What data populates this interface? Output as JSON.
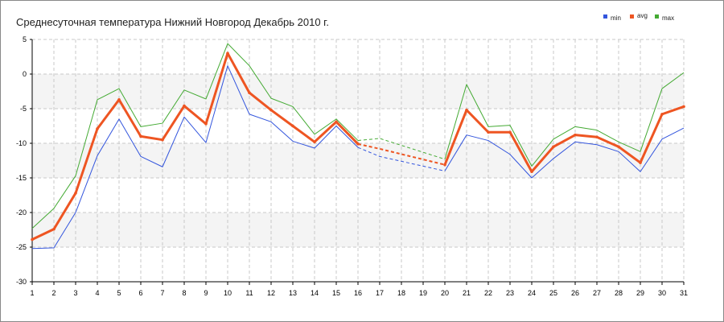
{
  "chart_data": {
    "type": "line",
    "title": "Среднесуточная температура Нижний Новгород  Декабрь 2010 г.",
    "xlabel": "",
    "ylabel": "",
    "x": [
      1,
      2,
      3,
      4,
      5,
      6,
      7,
      8,
      9,
      10,
      11,
      12,
      13,
      14,
      15,
      16,
      17,
      18,
      19,
      20,
      21,
      22,
      23,
      24,
      25,
      26,
      27,
      28,
      29,
      30,
      31
    ],
    "xlim": [
      1,
      31
    ],
    "ylim": [
      -30,
      5
    ],
    "yticks": [
      5,
      0,
      -5,
      -10,
      -15,
      -20,
      -25,
      -30
    ],
    "grid": true,
    "shaded_bands": [
      [
        -5,
        0
      ],
      [
        -15,
        -10
      ],
      [
        -25,
        -20
      ]
    ],
    "legend_position": "top-right",
    "missing_days": [
      17,
      18,
      19
    ],
    "series": [
      {
        "name": "min",
        "color": "#3355dd",
        "values": [
          -25.2,
          -25.1,
          -20.0,
          -11.8,
          -6.5,
          -11.9,
          -13.4,
          -6.2,
          -9.9,
          1.2,
          -5.8,
          -6.9,
          -9.7,
          -10.7,
          -7.5,
          -10.6,
          null,
          null,
          null,
          -14.0,
          -8.8,
          -9.6,
          -11.6,
          -15.0,
          -12.2,
          -9.8,
          -10.2,
          -11.2,
          -14.1,
          -9.4,
          -7.8
        ],
        "gap_dashed": [
          [
            16,
            -10.6
          ],
          [
            17,
            -11.9
          ],
          [
            20,
            -14.0
          ]
        ]
      },
      {
        "name": "avg",
        "color": "#ee5522",
        "values": [
          -23.9,
          -22.4,
          -17.2,
          -7.9,
          -3.7,
          -9.0,
          -9.5,
          -4.6,
          -7.2,
          3.0,
          -2.7,
          -5.2,
          -7.5,
          -9.8,
          -6.9,
          -10.1,
          null,
          null,
          null,
          -13.1,
          -5.2,
          -8.4,
          -8.4,
          -14.1,
          -10.5,
          -8.8,
          -9.1,
          -10.5,
          -12.8,
          -5.8,
          -4.7
        ],
        "gap_dashed": [
          [
            16,
            -10.1
          ],
          [
            17,
            -10.8
          ],
          [
            20,
            -13.1
          ]
        ]
      },
      {
        "name": "max",
        "color": "#44aa33",
        "values": [
          -22.3,
          -19.4,
          -14.7,
          -3.7,
          -2.1,
          -7.6,
          -7.1,
          -2.3,
          -3.6,
          4.4,
          1.2,
          -3.5,
          -4.7,
          -8.7,
          -6.5,
          -9.6,
          null,
          null,
          null,
          -12.3,
          -1.5,
          -7.6,
          -7.4,
          -13.3,
          -9.4,
          -7.6,
          -8.1,
          -9.8,
          -11.2,
          -2.1,
          0.2
        ],
        "gap_dashed": [
          [
            16,
            -9.6
          ],
          [
            17,
            -9.3
          ],
          [
            20,
            -12.3
          ]
        ]
      }
    ]
  }
}
